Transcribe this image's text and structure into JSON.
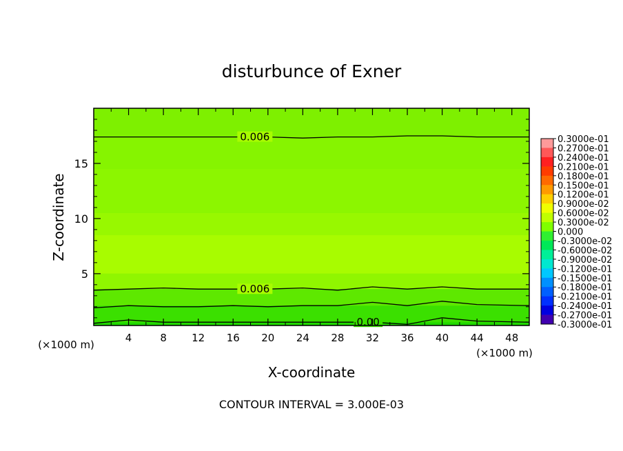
{
  "chart_data": {
    "type": "heatmap",
    "title": "disturbunce of Exner",
    "xlabel": "X-coordinate",
    "ylabel": "Z-coordinate",
    "x_unit": "(×1000 m)",
    "footer": "CONTOUR INTERVAL = 3.000E-03",
    "xlim": [
      0,
      50
    ],
    "ylim": [
      0.3,
      20
    ],
    "x_ticks": [
      "4",
      "8",
      "12",
      "16",
      "20",
      "24",
      "28",
      "32",
      "36",
      "40",
      "44",
      "48"
    ],
    "y_ticks": [
      "5",
      "10",
      "15"
    ],
    "contours": [
      {
        "level": 0.006,
        "label": "0.006",
        "z": [
          17.4,
          17.4,
          17.4,
          17.4,
          17.4,
          17.4,
          17.3,
          17.4,
          17.4,
          17.5,
          17.5,
          17.4,
          17.4
        ]
      },
      {
        "level": 0.006,
        "label": "0.006",
        "z": [
          3.5,
          3.6,
          3.7,
          3.6,
          3.6,
          3.6,
          3.7,
          3.5,
          3.8,
          3.6,
          3.8,
          3.6,
          3.6
        ]
      },
      {
        "level": 0.003,
        "label": "",
        "z": [
          1.9,
          2.1,
          2.0,
          2.0,
          2.1,
          2.0,
          2.1,
          2.1,
          2.4,
          2.1,
          2.5,
          2.2,
          2.1
        ]
      },
      {
        "level": 0.0,
        "label": "0.00",
        "z": [
          0.5,
          0.8,
          0.6,
          0.6,
          0.6,
          0.6,
          0.6,
          0.6,
          0.6,
          0.4,
          1.0,
          0.7,
          0.6
        ]
      }
    ],
    "contour_x": [
      0,
      4,
      8,
      12,
      16,
      20,
      24,
      28,
      32,
      36,
      40,
      44,
      50
    ],
    "colorbar": {
      "levels": [
        "0.3000e-01",
        "0.2700e-01",
        "0.2400e-01",
        "0.2100e-01",
        "0.1800e-01",
        "0.1500e-01",
        "0.1200e-01",
        "0.9000e-02",
        "0.6000e-02",
        "0.3000e-02",
        "0.000",
        "-0.3000e-02",
        "-0.6000e-02",
        "-0.9000e-02",
        "-0.1200e-01",
        "-0.1500e-01",
        "-0.1800e-01",
        "-0.2100e-01",
        "-0.2400e-01",
        "-0.2700e-01",
        "-0.3000e-01"
      ],
      "colors": [
        "#ff9a9a",
        "#ff5858",
        "#ff2020",
        "#ff3c00",
        "#ff6a00",
        "#ff9a00",
        "#ffd000",
        "#f0ff00",
        "#c0ff00",
        "#80ff00",
        "#30f030",
        "#00e858",
        "#00f098",
        "#00e8d0",
        "#00c8ff",
        "#0090ff",
        "#0060ff",
        "#0030ff",
        "#0000e0",
        "#4000b0"
      ]
    }
  }
}
